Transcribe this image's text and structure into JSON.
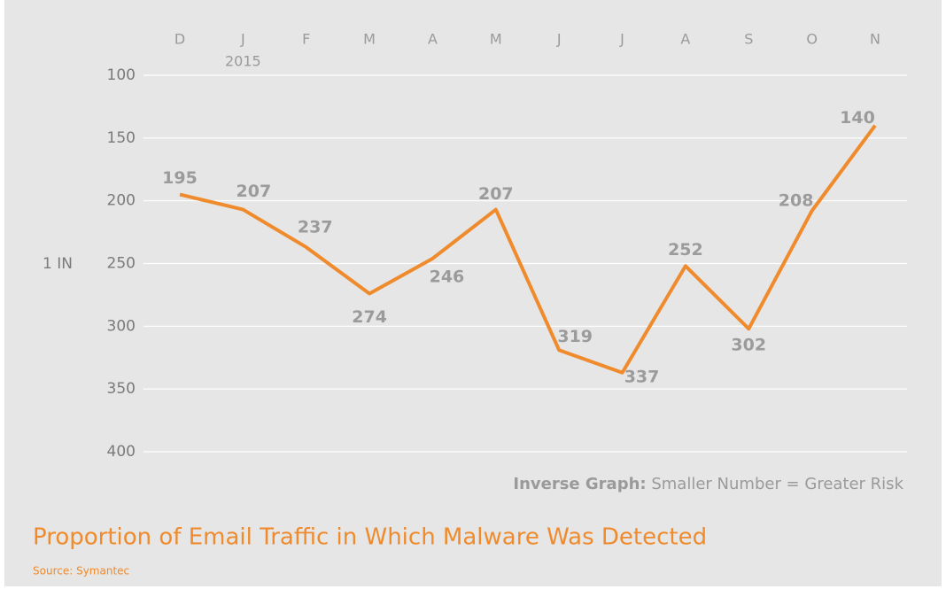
{
  "chart_data": {
    "type": "line",
    "title": "Proportion of Email Traffic in Which Malware Was Detected",
    "source": "Source: Symantec",
    "y_label": "1 IN",
    "year_label": "2015",
    "annotation": {
      "label": "Inverse Graph:",
      "text": "Smaller Number = Greater Risk"
    },
    "categories": [
      "D",
      "J",
      "F",
      "M",
      "A",
      "M",
      "J",
      "J",
      "A",
      "S",
      "O",
      "N"
    ],
    "series": [
      {
        "name": "Malware",
        "color": "#ef8b2c",
        "values": [
          195,
          207,
          237,
          274,
          246,
          207,
          319,
          337,
          252,
          302,
          208,
          140
        ]
      }
    ],
    "ylim": [
      100,
      400
    ],
    "y_inverted": true,
    "yticks": [
      100,
      150,
      200,
      250,
      300,
      350,
      400
    ],
    "grid": true
  }
}
